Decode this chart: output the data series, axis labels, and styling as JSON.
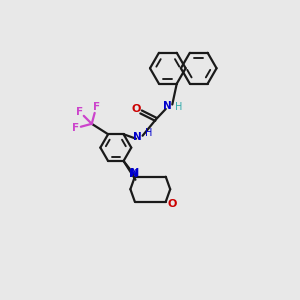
{
  "bg_color": "#e8e8e8",
  "bond_color": "#1a1a1a",
  "N_color": "#0000cc",
  "O_color": "#cc0000",
  "F_color": "#cc44cc",
  "line_width": 1.6,
  "dbo": 0.055,
  "xlim": [
    0,
    10
  ],
  "ylim": [
    0,
    10
  ]
}
